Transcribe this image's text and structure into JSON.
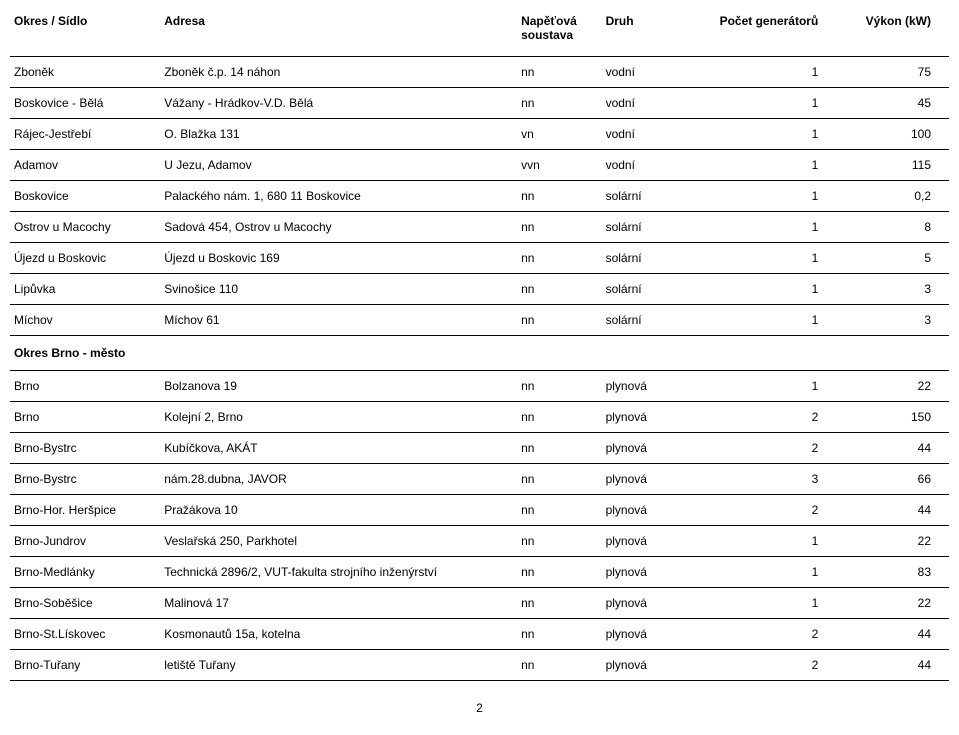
{
  "columns": [
    {
      "label": "Okres / Sídlo",
      "class": "col-0"
    },
    {
      "label": "Adresa",
      "class": "col-1"
    },
    {
      "label": "Napěťová soustava",
      "class": "col-2"
    },
    {
      "label": "Druh",
      "class": "col-3"
    },
    {
      "label": "Počet generátorů",
      "class": "col-4"
    },
    {
      "label": "Výkon (kW)",
      "class": "col-5"
    }
  ],
  "rows": [
    {
      "type": "data",
      "cells": [
        "Zboněk",
        "Zboněk č.p. 14 náhon",
        "nn",
        "vodní",
        "1",
        "75"
      ]
    },
    {
      "type": "data",
      "cells": [
        "Boskovice - Bělá",
        "Vážany - Hrádkov-V.D. Bělá",
        "nn",
        "vodní",
        "1",
        "45"
      ]
    },
    {
      "type": "data",
      "cells": [
        "Rájec-Jestřebí",
        "O. Blažka 131",
        "vn",
        "vodní",
        "1",
        "100"
      ]
    },
    {
      "type": "data",
      "cells": [
        "Adamov",
        "U Jezu, Adamov",
        "vvn",
        "vodní",
        "1",
        "115"
      ]
    },
    {
      "type": "data",
      "cells": [
        "Boskovice",
        "Palackého nám. 1, 680 11 Boskovice",
        "nn",
        "solární",
        "1",
        "0,2"
      ]
    },
    {
      "type": "data",
      "cells": [
        "Ostrov u Macochy",
        "Sadová 454,  Ostrov u Macochy",
        "nn",
        "solární",
        "1",
        "8"
      ]
    },
    {
      "type": "data",
      "cells": [
        "Újezd u Boskovic",
        "Újezd u Boskovic 169",
        "nn",
        "solární",
        "1",
        "5"
      ]
    },
    {
      "type": "data",
      "cells": [
        "Lipůvka",
        "Svinošice 110",
        "nn",
        "solární",
        "1",
        "3"
      ]
    },
    {
      "type": "data",
      "cells": [
        "Míchov",
        "Míchov 61",
        "nn",
        "solární",
        "1",
        "3"
      ]
    },
    {
      "type": "section",
      "cells": [
        "Okres Brno - město",
        "",
        "",
        "",
        "",
        ""
      ]
    },
    {
      "type": "data",
      "cells": [
        "Brno",
        "Bolzanova 19",
        "nn",
        "plynová",
        "1",
        "22"
      ]
    },
    {
      "type": "data",
      "cells": [
        "Brno",
        "Kolejní 2, Brno",
        "nn",
        "plynová",
        "2",
        "150"
      ]
    },
    {
      "type": "data",
      "cells": [
        "Brno-Bystrc",
        "Kubíčkova, AKÁT",
        "nn",
        "plynová",
        "2",
        "44"
      ]
    },
    {
      "type": "data",
      "cells": [
        "Brno-Bystrc",
        "nám.28.dubna, JAVOR",
        "nn",
        "plynová",
        "3",
        "66"
      ]
    },
    {
      "type": "data",
      "cells": [
        "Brno-Hor. Heršpice",
        "Pražákova 10",
        "nn",
        "plynová",
        "2",
        "44"
      ]
    },
    {
      "type": "data",
      "cells": [
        "Brno-Jundrov",
        "Veslařská 250, Parkhotel",
        "nn",
        "plynová",
        "1",
        "22"
      ]
    },
    {
      "type": "data",
      "cells": [
        "Brno-Medlánky",
        "Technická 2896/2, VUT-fakulta strojního inženýrství",
        "nn",
        "plynová",
        "1",
        "83"
      ]
    },
    {
      "type": "data",
      "cells": [
        "Brno-Soběšice",
        "Malinová 17",
        "nn",
        "plynová",
        "1",
        "22"
      ]
    },
    {
      "type": "data",
      "cells": [
        "Brno-St.Lískovec",
        "Kosmonautů 15a, kotelna",
        "nn",
        "plynová",
        "2",
        "44"
      ]
    },
    {
      "type": "data",
      "cells": [
        "Brno-Tuřany",
        "letiště Tuřany",
        "nn",
        "plynová",
        "2",
        "44"
      ]
    }
  ],
  "page_number": "2",
  "numeric_columns": [
    4,
    5
  ]
}
